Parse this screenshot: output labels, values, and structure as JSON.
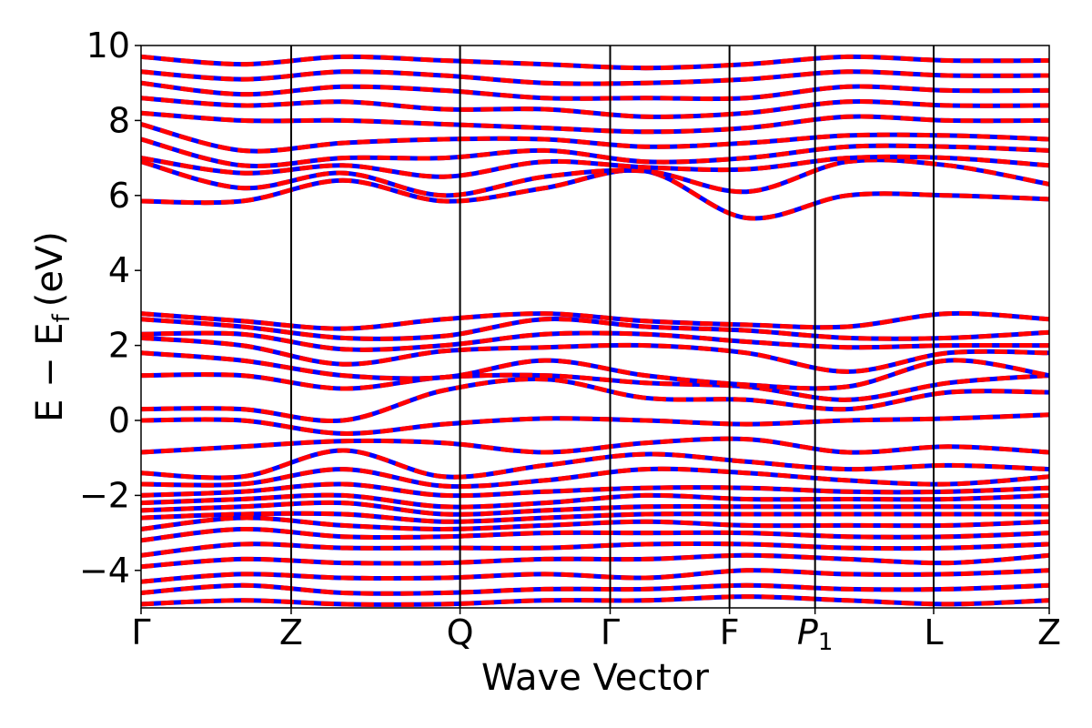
{
  "chart_data": {
    "type": "line",
    "title": "",
    "xlabel": "Wave Vector",
    "ylabel": "E − E",
    "ylabel_subscript": "f",
    "ylabel_unit": "(eV)",
    "ylim": [
      -5,
      10
    ],
    "yticks": [
      -4,
      -2,
      0,
      2,
      4,
      6,
      8,
      10
    ],
    "ytick_labels": [
      "−4",
      "−2",
      "0",
      "2",
      "4",
      "6",
      "8",
      "10"
    ],
    "kpath": [
      {
        "label": "Γ",
        "x": 0
      },
      {
        "label": "Z",
        "x": 1
      },
      {
        "label": "Q",
        "x": 2.125
      },
      {
        "label": "Γ",
        "x": 3.125
      },
      {
        "label": "F",
        "x": 3.92
      },
      {
        "label": "P",
        "sub": "1",
        "italic": true,
        "x": 4.49
      },
      {
        "label": "L",
        "x": 5.28
      },
      {
        "label": "Z",
        "x": 6.05
      }
    ],
    "colors": {
      "solid": "#ff0000",
      "dashed": "#0000ff",
      "axes": "#000000"
    },
    "series": [
      {
        "values": [
          0.0,
          0.0,
          -0.35,
          -0.1,
          0.05,
          0.0,
          -0.1,
          0.0,
          0.05,
          0.15
        ]
      },
      {
        "values": [
          0.3,
          0.3,
          0.0,
          0.8,
          1.1,
          0.6,
          0.55,
          0.3,
          0.75,
          0.75
        ]
      },
      {
        "values": [
          1.2,
          1.2,
          0.85,
          1.15,
          1.2,
          1.0,
          0.9,
          0.55,
          1.0,
          1.2
        ]
      },
      {
        "values": [
          1.8,
          1.6,
          1.2,
          1.15,
          1.6,
          1.2,
          0.95,
          0.9,
          1.6,
          1.2
        ]
      },
      {
        "values": [
          2.2,
          2.0,
          1.5,
          1.85,
          1.95,
          2.0,
          1.8,
          1.3,
          1.8,
          1.8
        ]
      },
      {
        "values": [
          2.3,
          2.3,
          1.9,
          2.0,
          2.3,
          2.3,
          2.1,
          1.95,
          2.0,
          2.0
        ]
      },
      {
        "values": [
          2.7,
          2.5,
          2.2,
          2.25,
          2.7,
          2.5,
          2.4,
          2.2,
          2.2,
          2.35
        ]
      },
      {
        "values": [
          2.85,
          2.65,
          2.45,
          2.7,
          2.85,
          2.65,
          2.55,
          2.5,
          2.85,
          2.7
        ]
      },
      {
        "values": [
          -0.85,
          -0.7,
          -0.55,
          -0.6,
          -0.85,
          -0.6,
          -0.5,
          -0.85,
          -0.7,
          -0.85
        ]
      },
      {
        "values": [
          -1.4,
          -1.5,
          -0.8,
          -1.5,
          -1.2,
          -0.9,
          -1.1,
          -1.3,
          -1.2,
          -1.3
        ]
      },
      {
        "values": [
          -1.7,
          -1.7,
          -1.3,
          -1.75,
          -1.6,
          -1.3,
          -1.4,
          -1.6,
          -1.7,
          -1.5
        ]
      },
      {
        "values": [
          -2.0,
          -1.9,
          -1.7,
          -2.0,
          -1.9,
          -1.8,
          -1.8,
          -1.9,
          -1.9,
          -1.8
        ]
      },
      {
        "values": [
          -2.2,
          -2.1,
          -2.0,
          -2.3,
          -2.2,
          -2.0,
          -2.1,
          -2.1,
          -2.1,
          -2.0
        ]
      },
      {
        "values": [
          -2.4,
          -2.3,
          -2.2,
          -2.5,
          -2.4,
          -2.3,
          -2.3,
          -2.3,
          -2.3,
          -2.3
        ]
      },
      {
        "values": [
          -2.6,
          -2.5,
          -2.5,
          -2.7,
          -2.6,
          -2.5,
          -2.5,
          -2.5,
          -2.5,
          -2.5
        ]
      },
      {
        "values": [
          -2.9,
          -2.6,
          -2.8,
          -2.9,
          -2.8,
          -2.7,
          -2.8,
          -2.8,
          -2.8,
          -2.7
        ]
      },
      {
        "values": [
          -3.2,
          -2.9,
          -3.1,
          -3.1,
          -3.0,
          -3.0,
          -3.0,
          -3.1,
          -3.1,
          -3.0
        ]
      },
      {
        "values": [
          -3.6,
          -3.3,
          -3.4,
          -3.4,
          -3.4,
          -3.3,
          -3.3,
          -3.4,
          -3.4,
          -3.3
        ]
      },
      {
        "values": [
          -3.9,
          -3.7,
          -3.8,
          -3.8,
          -3.7,
          -3.7,
          -3.6,
          -3.7,
          -3.8,
          -3.6
        ]
      },
      {
        "values": [
          -4.3,
          -4.1,
          -4.2,
          -4.2,
          -4.1,
          -4.2,
          -4.0,
          -4.1,
          -4.1,
          -4.0
        ]
      },
      {
        "values": [
          -4.6,
          -4.4,
          -4.6,
          -4.6,
          -4.5,
          -4.5,
          -4.4,
          -4.5,
          -4.5,
          -4.4
        ]
      },
      {
        "values": [
          -4.9,
          -4.8,
          -4.9,
          -4.9,
          -4.8,
          -4.8,
          -4.7,
          -4.8,
          -4.9,
          -4.8
        ]
      },
      {
        "values": [
          5.85,
          5.85,
          6.4,
          5.85,
          6.2,
          6.65,
          5.4,
          6.0,
          6.0,
          5.9
        ]
      },
      {
        "values": [
          6.9,
          6.2,
          6.6,
          6.0,
          6.5,
          6.65,
          6.1,
          6.9,
          6.8,
          6.3
        ]
      },
      {
        "values": [
          7.0,
          6.6,
          6.8,
          6.5,
          6.9,
          6.75,
          6.7,
          7.0,
          7.0,
          6.8
        ]
      },
      {
        "values": [
          7.5,
          6.8,
          7.0,
          7.0,
          7.2,
          6.9,
          7.0,
          7.3,
          7.3,
          7.2
        ]
      },
      {
        "values": [
          7.9,
          7.2,
          7.4,
          7.5,
          7.5,
          7.3,
          7.4,
          7.6,
          7.6,
          7.5
        ]
      },
      {
        "values": [
          8.2,
          8.0,
          8.0,
          7.9,
          7.8,
          7.7,
          7.8,
          8.1,
          8.0,
          8.0
        ]
      },
      {
        "values": [
          8.6,
          8.4,
          8.5,
          8.3,
          8.3,
          8.1,
          8.2,
          8.5,
          8.4,
          8.4
        ]
      },
      {
        "values": [
          9.0,
          8.7,
          8.9,
          8.8,
          8.6,
          8.6,
          8.6,
          8.9,
          8.8,
          8.8
        ]
      },
      {
        "values": [
          9.3,
          9.1,
          9.3,
          9.2,
          9.0,
          9.0,
          9.1,
          9.3,
          9.2,
          9.2
        ]
      },
      {
        "values": [
          9.7,
          9.5,
          9.7,
          9.6,
          9.5,
          9.4,
          9.5,
          9.7,
          9.6,
          9.6
        ]
      }
    ]
  }
}
